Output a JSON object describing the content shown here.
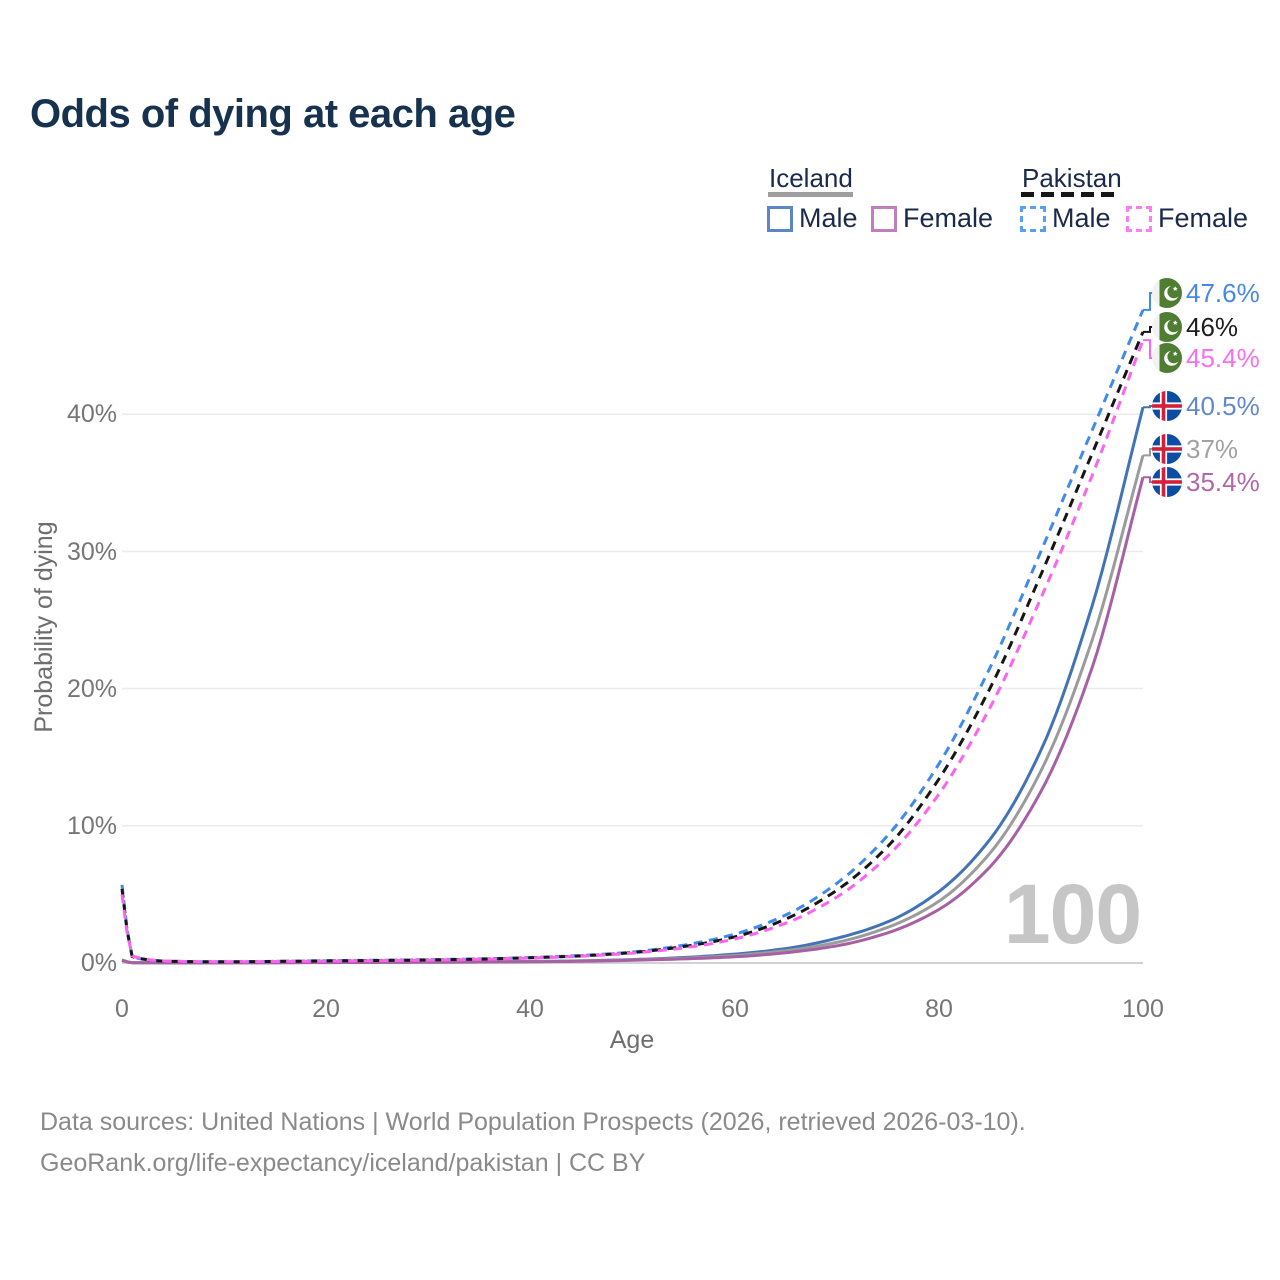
{
  "title": "Odds of dying at each age",
  "legend": {
    "groups": [
      {
        "country": "Iceland",
        "line_style": "solid",
        "line_color": "#9e9e9e",
        "items": [
          {
            "label": "Male",
            "swatch_color": "#5b87c5"
          },
          {
            "label": "Female",
            "swatch_color": "#bf7fbc"
          }
        ]
      },
      {
        "country": "Pakistan",
        "line_style": "dashed",
        "line_color": "#161616",
        "items": [
          {
            "label": "Male",
            "swatch_color": "#55a0f4"
          },
          {
            "label": "Female",
            "swatch_color": "#fb7df1"
          }
        ]
      }
    ]
  },
  "watermark": "100",
  "footer": {
    "line1": "Data sources: United Nations | World Population Prospects (2026, retrieved 2026-03-10).",
    "line2": "GeoRank.org/life-expectancy/iceland/pakistan | CC BY"
  },
  "chart_data": {
    "type": "line",
    "title": "Odds of dying at each age",
    "xlabel": "Age",
    "ylabel": "Probability of dying",
    "xlim": [
      0,
      100
    ],
    "ylim_percent": [
      0,
      50
    ],
    "grid": true,
    "legend_position": "top-right",
    "x_tick_labels": [
      "0",
      "20",
      "40",
      "60",
      "80",
      "100"
    ],
    "y_tick_labels": [
      "0%",
      "10%",
      "20%",
      "30%",
      "40%"
    ],
    "ages": [
      0,
      1,
      5,
      10,
      15,
      20,
      25,
      30,
      35,
      40,
      45,
      50,
      55,
      60,
      65,
      70,
      75,
      80,
      85,
      90,
      95,
      100
    ],
    "series": [
      {
        "name": "Pakistan Male",
        "country": "Pakistan",
        "sex": "Male",
        "flag": "pakistan",
        "dash": true,
        "line_color": "#3f8bed",
        "label_color": "#4688e3",
        "end_label": "47.6%",
        "values_percent": [
          5.7,
          0.45,
          0.12,
          0.09,
          0.12,
          0.17,
          0.2,
          0.24,
          0.3,
          0.4,
          0.55,
          0.8,
          1.3,
          2.1,
          3.5,
          5.8,
          9.3,
          14.5,
          21.5,
          30.0,
          38.8,
          47.6
        ]
      },
      {
        "name": "Pakistan Both sexes",
        "country": "Pakistan",
        "sex": "Both",
        "flag": "pakistan",
        "dash": true,
        "line_color": "#161616",
        "label_color": "#1e1e1e",
        "end_label": "46%",
        "values_percent": [
          5.4,
          0.47,
          0.12,
          0.09,
          0.115,
          0.155,
          0.185,
          0.225,
          0.285,
          0.38,
          0.52,
          0.76,
          1.2,
          1.9,
          3.2,
          5.3,
          8.5,
          13.4,
          20.0,
          28.3,
          37.1,
          46.0
        ]
      },
      {
        "name": "Pakistan Female",
        "country": "Pakistan",
        "sex": "Female",
        "flag": "pakistan",
        "dash": true,
        "line_color": "#fa64ef",
        "label_color": "#fa6ef0",
        "end_label": "45.4%",
        "values_percent": [
          5.0,
          0.5,
          0.13,
          0.09,
          0.11,
          0.14,
          0.17,
          0.21,
          0.27,
          0.36,
          0.5,
          0.72,
          1.1,
          1.75,
          2.9,
          4.8,
          7.8,
          12.3,
          18.6,
          26.6,
          35.5,
          45.4
        ]
      },
      {
        "name": "Iceland Male",
        "country": "Iceland",
        "sex": "Male",
        "flag": "iceland",
        "dash": false,
        "line_color": "#4273b6",
        "label_color": "#6189c7",
        "end_label": "40.5%",
        "values_percent": [
          0.22,
          0.02,
          0.01,
          0.01,
          0.03,
          0.06,
          0.07,
          0.08,
          0.09,
          0.11,
          0.16,
          0.25,
          0.4,
          0.65,
          1.05,
          1.8,
          3.0,
          5.2,
          9.0,
          15.5,
          26.0,
          40.5
        ]
      },
      {
        "name": "Iceland Both sexes",
        "country": "Iceland",
        "sex": "Both",
        "flag": "iceland",
        "dash": false,
        "line_color": "#9b9b9b",
        "label_color": "#a2a2a2",
        "end_label": "37%",
        "values_percent": [
          0.2,
          0.02,
          0.01,
          0.01,
          0.025,
          0.045,
          0.055,
          0.065,
          0.08,
          0.1,
          0.145,
          0.22,
          0.35,
          0.55,
          0.9,
          1.5,
          2.6,
          4.5,
          8.0,
          14.0,
          23.5,
          37.0
        ]
      },
      {
        "name": "Iceland Female",
        "country": "Iceland",
        "sex": "Female",
        "flag": "iceland",
        "dash": false,
        "line_color": "#a760a3",
        "label_color": "#b167ad",
        "end_label": "35.4%",
        "values_percent": [
          0.18,
          0.02,
          0.01,
          0.01,
          0.02,
          0.03,
          0.04,
          0.05,
          0.07,
          0.09,
          0.13,
          0.2,
          0.3,
          0.45,
          0.75,
          1.25,
          2.2,
          3.9,
          7.0,
          12.5,
          21.5,
          35.4
        ]
      }
    ]
  }
}
